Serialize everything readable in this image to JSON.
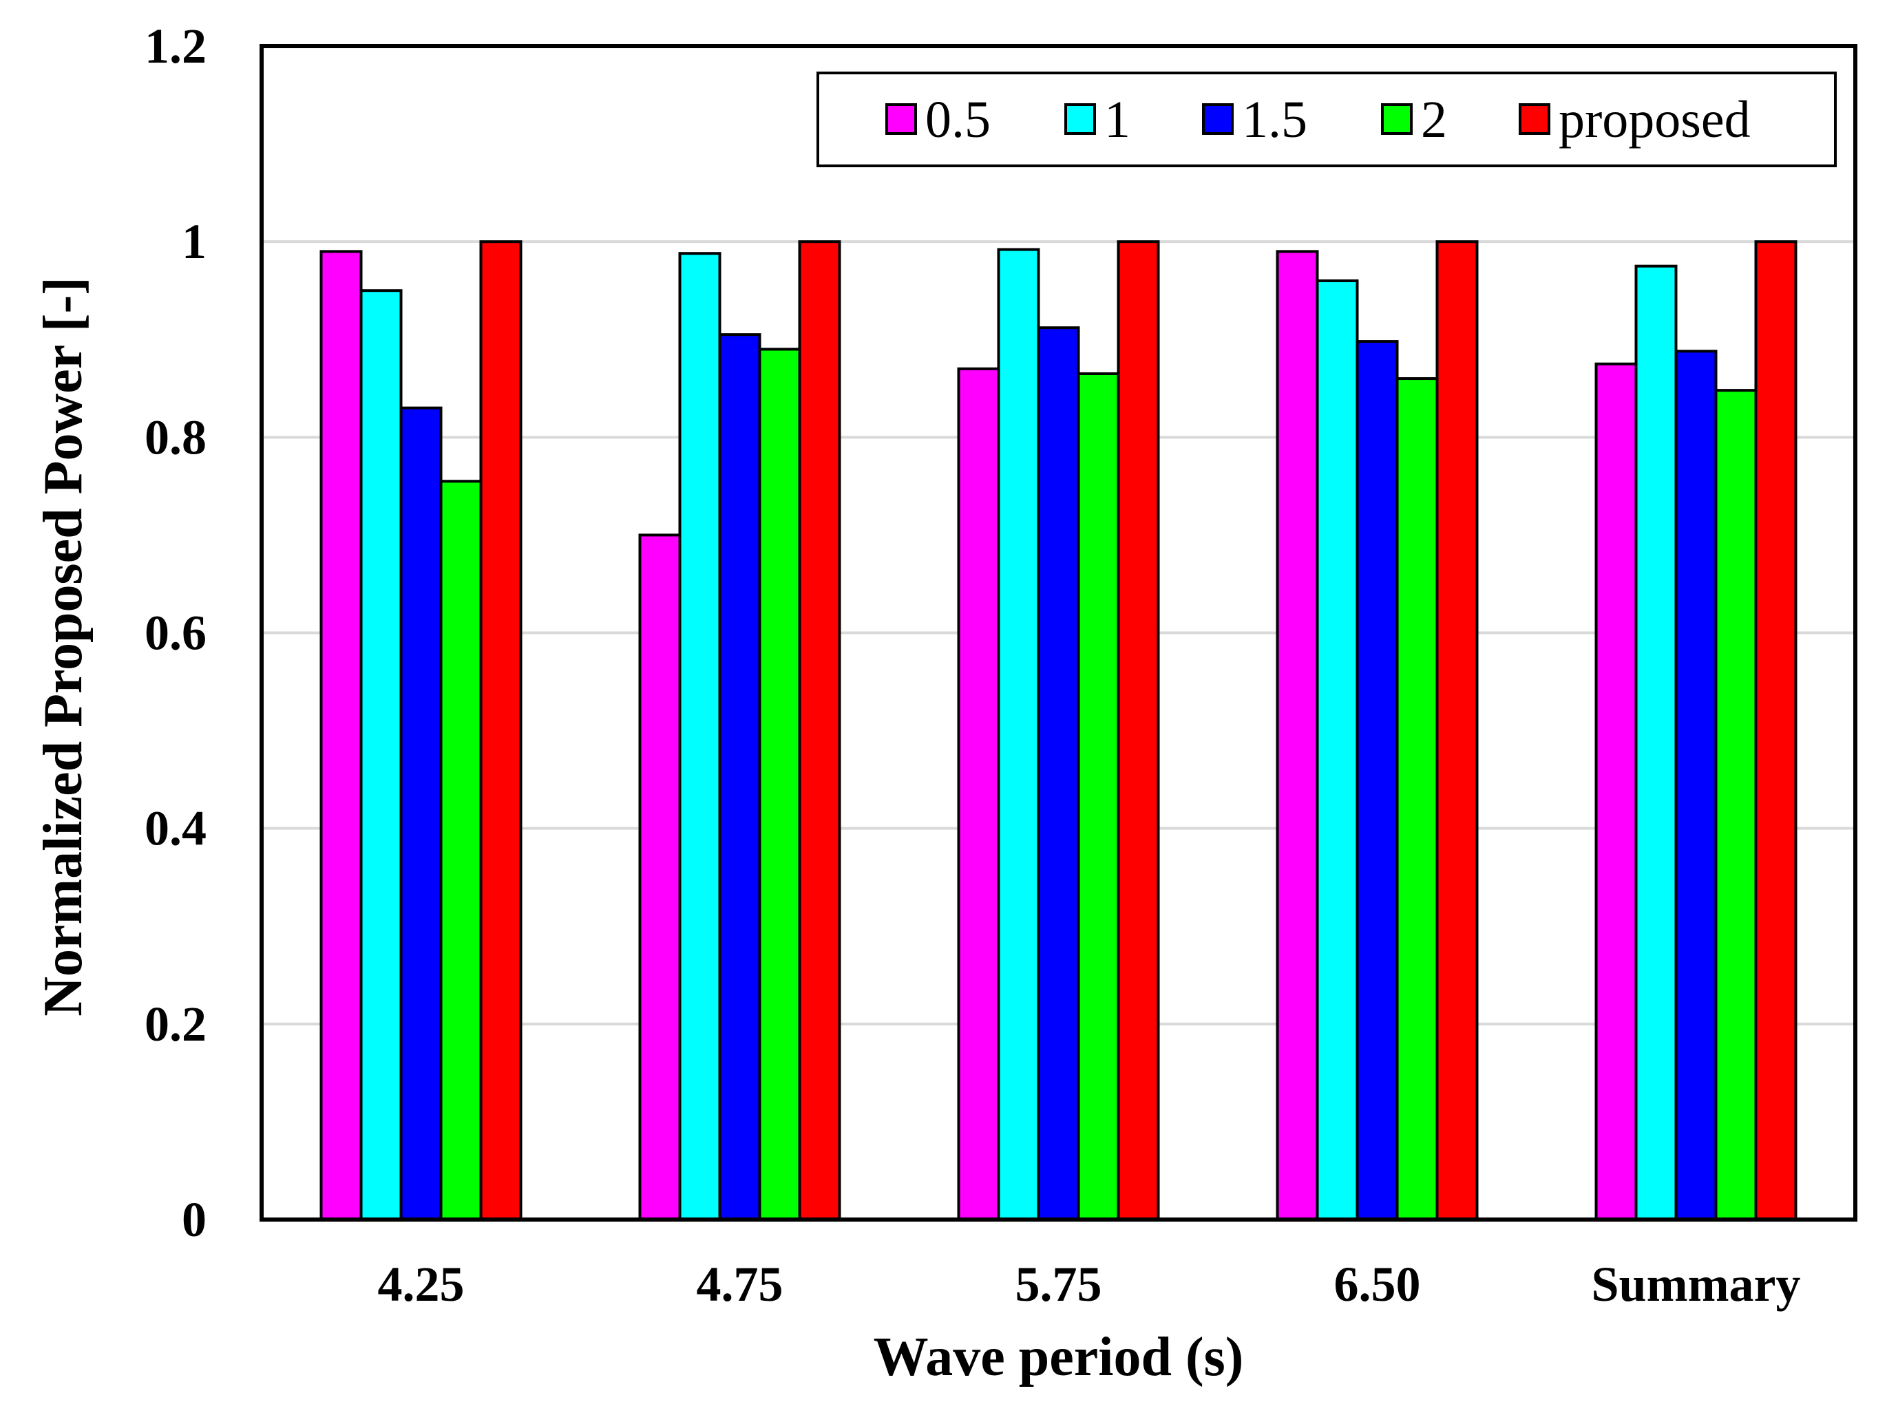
{
  "chart_data": {
    "type": "bar",
    "title": "",
    "xlabel": "Wave period (s)",
    "ylabel": "Normalized Proposed Power [-]",
    "ylim": [
      0,
      1.2
    ],
    "yticks": [
      0,
      0.2,
      0.4,
      0.6,
      0.8,
      1,
      1.2
    ],
    "ytick_labels": [
      "0",
      "0.2",
      "0.4",
      "0.6",
      "0.8",
      "1",
      "1.2"
    ],
    "grid": true,
    "legend_position": "top-right",
    "categories": [
      "4.25",
      "4.75",
      "5.75",
      "6.50",
      "Summary"
    ],
    "series": [
      {
        "name": "0.5",
        "color": "#ff00ff",
        "values": [
          0.99,
          0.7,
          0.87,
          0.99,
          0.875
        ]
      },
      {
        "name": "1",
        "color": "#00ffff",
        "values": [
          0.95,
          0.988,
          0.992,
          0.96,
          0.975
        ]
      },
      {
        "name": "1.5",
        "color": "#0000ff",
        "values": [
          0.83,
          0.905,
          0.912,
          0.898,
          0.888
        ]
      },
      {
        "name": "2",
        "color": "#00ff00",
        "values": [
          0.755,
          0.89,
          0.865,
          0.86,
          0.848
        ]
      },
      {
        "name": "proposed",
        "color": "#ff0000",
        "values": [
          1.0,
          1.0,
          1.0,
          1.0,
          1.0
        ]
      }
    ]
  }
}
